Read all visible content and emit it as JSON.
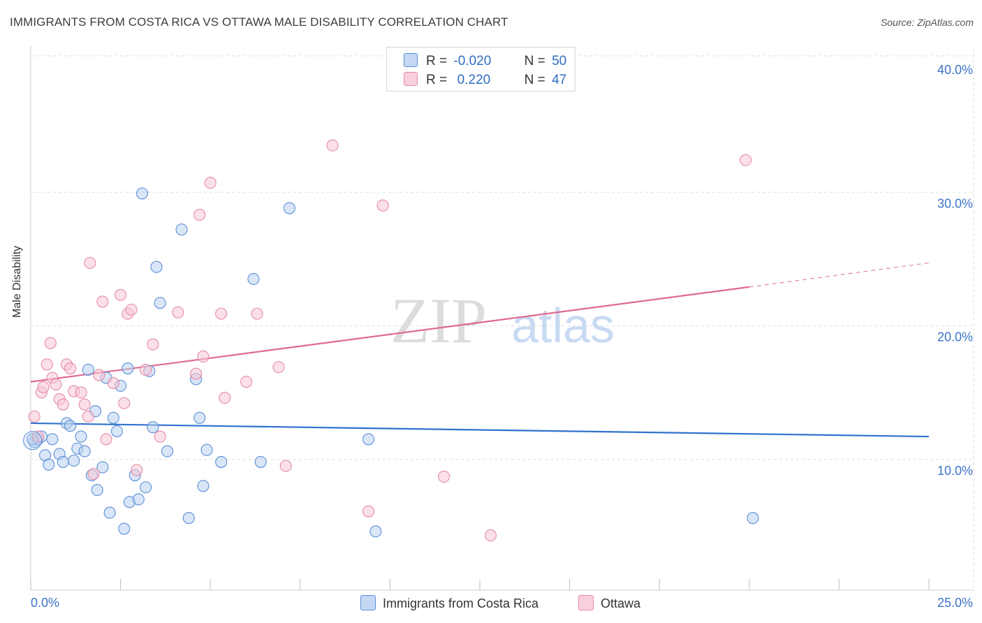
{
  "title": "IMMIGRANTS FROM COSTA RICA VS OTTAWA MALE DISABILITY CORRELATION CHART",
  "source": "Source: ZipAtlas.com",
  "watermark": {
    "zip": "ZIP",
    "atlas": "atlas"
  },
  "legend": {
    "rows": [
      {
        "r_label": "R =",
        "r_value": "-0.020",
        "n_label": "N =",
        "n_value": "50"
      },
      {
        "r_label": "R =",
        "r_value": " 0.220",
        "n_label": "N =",
        "n_value": "47"
      }
    ]
  },
  "bottom_legend": [
    "Immigrants from Costa Rica",
    "Ottawa"
  ],
  "colors": {
    "blue": "#5b8fd6",
    "blue_fill": "#b9d1f1",
    "blue_line": "#2f72cf",
    "pink": "#e58aa8",
    "pink_fill": "#f8c6d6",
    "pink_line": "#e06a92",
    "tick_label": "#3b74c7"
  },
  "chart_data": {
    "type": "scatter",
    "title": "IMMIGRANTS FROM COSTA RICA VS OTTAWA MALE DISABILITY CORRELATION CHART",
    "xlabel": "",
    "ylabel": "Male Disability",
    "xlim": [
      0,
      25
    ],
    "ylim": [
      0,
      40
    ],
    "x_tick_labels": [
      "0.0%",
      "25.0%"
    ],
    "y_ticks": [
      10,
      20,
      30,
      40
    ],
    "y_tick_labels": [
      "10.0%",
      "20.0%",
      "30.0%",
      "40.0%"
    ],
    "series": [
      {
        "name": "Immigrants from Costa Rica",
        "color": "blue",
        "trend": {
          "x0": 0,
          "y0": 12.5,
          "x1": 25,
          "y1": 11.5
        },
        "points": [
          [
            0.1,
            11.1
          ],
          [
            0.2,
            11.3
          ],
          [
            0.3,
            11.5
          ],
          [
            0.4,
            10.1
          ],
          [
            0.5,
            9.4
          ],
          [
            0.6,
            11.3
          ],
          [
            0.8,
            10.2
          ],
          [
            0.9,
            9.6
          ],
          [
            1.0,
            12.5
          ],
          [
            1.1,
            12.3
          ],
          [
            1.2,
            9.7
          ],
          [
            1.3,
            10.6
          ],
          [
            1.4,
            11.5
          ],
          [
            1.5,
            10.4
          ],
          [
            1.6,
            16.5
          ],
          [
            1.7,
            8.6
          ],
          [
            1.8,
            13.4
          ],
          [
            1.85,
            7.5
          ],
          [
            2.0,
            9.2
          ],
          [
            2.1,
            15.9
          ],
          [
            2.2,
            5.8
          ],
          [
            2.3,
            12.9
          ],
          [
            2.4,
            11.9
          ],
          [
            2.5,
            15.3
          ],
          [
            2.6,
            4.6
          ],
          [
            2.7,
            16.6
          ],
          [
            2.75,
            6.6
          ],
          [
            2.9,
            8.6
          ],
          [
            3.0,
            6.8
          ],
          [
            3.1,
            29.7
          ],
          [
            3.2,
            7.7
          ],
          [
            3.3,
            16.4
          ],
          [
            3.4,
            12.2
          ],
          [
            3.5,
            24.2
          ],
          [
            3.6,
            21.5
          ],
          [
            3.8,
            10.4
          ],
          [
            4.2,
            27.0
          ],
          [
            4.4,
            5.4
          ],
          [
            4.6,
            15.8
          ],
          [
            4.7,
            12.9
          ],
          [
            4.8,
            7.8
          ],
          [
            4.9,
            10.5
          ],
          [
            5.3,
            9.6
          ],
          [
            6.2,
            23.3
          ],
          [
            6.4,
            9.6
          ],
          [
            7.2,
            28.6
          ],
          [
            9.4,
            11.3
          ],
          [
            9.6,
            4.4
          ],
          [
            20.1,
            5.4
          ],
          [
            0.05,
            11.3
          ]
        ]
      },
      {
        "name": "Ottawa",
        "color": "pink",
        "trend": {
          "x0": 0,
          "y0": 15.6,
          "x1": 20.0,
          "y1": 22.7,
          "dash_to_x": 25,
          "dash_to_y": 24.5
        },
        "points": [
          [
            0.1,
            13.0
          ],
          [
            0.2,
            11.5
          ],
          [
            0.3,
            14.8
          ],
          [
            0.35,
            15.2
          ],
          [
            0.45,
            16.9
          ],
          [
            0.55,
            18.5
          ],
          [
            0.6,
            15.9
          ],
          [
            0.7,
            15.4
          ],
          [
            0.8,
            14.3
          ],
          [
            0.9,
            13.9
          ],
          [
            1.0,
            16.9
          ],
          [
            1.1,
            16.6
          ],
          [
            1.2,
            14.9
          ],
          [
            1.4,
            14.8
          ],
          [
            1.5,
            13.9
          ],
          [
            1.6,
            13.0
          ],
          [
            1.65,
            24.5
          ],
          [
            1.75,
            8.7
          ],
          [
            1.9,
            16.1
          ],
          [
            2.0,
            21.6
          ],
          [
            2.1,
            11.3
          ],
          [
            2.3,
            15.5
          ],
          [
            2.5,
            22.1
          ],
          [
            2.6,
            14.0
          ],
          [
            2.7,
            20.7
          ],
          [
            2.8,
            21.0
          ],
          [
            2.95,
            9.0
          ],
          [
            3.2,
            16.5
          ],
          [
            3.4,
            18.4
          ],
          [
            3.6,
            11.5
          ],
          [
            4.1,
            20.8
          ],
          [
            4.6,
            16.2
          ],
          [
            4.7,
            28.1
          ],
          [
            4.8,
            17.5
          ],
          [
            5.0,
            30.5
          ],
          [
            5.3,
            20.7
          ],
          [
            5.4,
            14.4
          ],
          [
            6.0,
            15.6
          ],
          [
            6.3,
            20.7
          ],
          [
            6.9,
            16.7
          ],
          [
            7.1,
            9.3
          ],
          [
            8.4,
            33.3
          ],
          [
            9.4,
            5.9
          ],
          [
            9.8,
            28.8
          ],
          [
            11.5,
            8.5
          ],
          [
            12.8,
            4.1
          ],
          [
            19.9,
            32.2
          ]
        ]
      }
    ]
  }
}
